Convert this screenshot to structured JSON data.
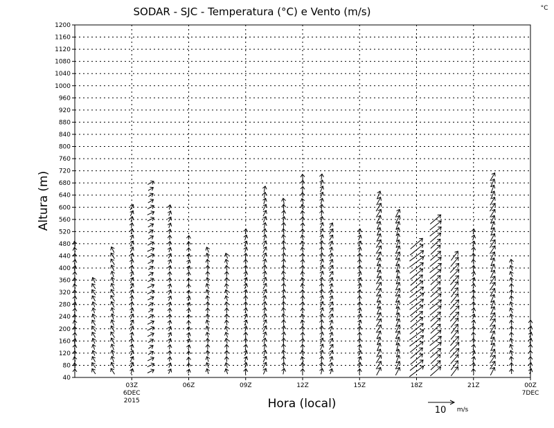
{
  "chart_data": {
    "type": "vector",
    "title": "SODAR - SJC - Temperatura (°C) e Vento (m/s)",
    "unit_corner": "°C",
    "xlabel": "Hora (local)",
    "ylabel": "Altura (m)",
    "ylim": [
      40,
      1200
    ],
    "yticks": [
      "40",
      "80",
      "120",
      "160",
      "200",
      "240",
      "280",
      "320",
      "360",
      "400",
      "440",
      "480",
      "520",
      "560",
      "600",
      "640",
      "680",
      "720",
      "760",
      "800",
      "840",
      "880",
      "920",
      "960",
      "1000",
      "1040",
      "1080",
      "1120",
      "1160",
      "1200"
    ],
    "xlim_hours": [
      0,
      24
    ],
    "xticks": [
      {
        "hour": 3,
        "label": "03Z",
        "sub1": "6DEC",
        "sub2": "2015"
      },
      {
        "hour": 6,
        "label": "06Z",
        "sub1": "",
        "sub2": ""
      },
      {
        "hour": 9,
        "label": "09Z",
        "sub1": "",
        "sub2": ""
      },
      {
        "hour": 12,
        "label": "12Z",
        "sub1": "",
        "sub2": ""
      },
      {
        "hour": 15,
        "label": "15Z",
        "sub1": "",
        "sub2": ""
      },
      {
        "hour": 18,
        "label": "18Z",
        "sub1": "",
        "sub2": ""
      },
      {
        "hour": 21,
        "label": "21Z",
        "sub1": "",
        "sub2": ""
      },
      {
        "hour": 24,
        "label": "00Z",
        "sub1": "7DEC",
        "sub2": ""
      }
    ],
    "grid": true,
    "reference_vector": {
      "speed_ms": 10,
      "value_label": "10",
      "unit_label": "m/s"
    },
    "vector_columns": [
      {
        "hour": 0.0,
        "top": 480,
        "u": 0.0,
        "v": 1.8
      },
      {
        "hour": 1.0,
        "top": 360,
        "u": -1.0,
        "v": 2.0
      },
      {
        "hour": 2.0,
        "top": 460,
        "u": -1.0,
        "v": 2.2
      },
      {
        "hour": 3.0,
        "top": 600,
        "u": 0.8,
        "v": 2.0
      },
      {
        "hour": 4.0,
        "top": 680,
        "u": 2.2,
        "v": 1.2
      },
      {
        "hour": 5.0,
        "top": 600,
        "u": 0.5,
        "v": 1.8
      },
      {
        "hour": 6.0,
        "top": 500,
        "u": 0.3,
        "v": 1.6
      },
      {
        "hour": 7.0,
        "top": 470,
        "u": -0.4,
        "v": 2.0
      },
      {
        "hour": 8.0,
        "top": 440,
        "u": -0.3,
        "v": 2.0
      },
      {
        "hour": 9.0,
        "top": 520,
        "u": 0.4,
        "v": 2.0
      },
      {
        "hour": 10.0,
        "top": 660,
        "u": 0.8,
        "v": 2.2
      },
      {
        "hour": 11.0,
        "top": 620,
        "u": 0.0,
        "v": 2.2
      },
      {
        "hour": 12.0,
        "top": 700,
        "u": -0.2,
        "v": 2.0
      },
      {
        "hour": 13.0,
        "top": 700,
        "u": 0.6,
        "v": 2.2
      },
      {
        "hour": 13.5,
        "top": 540,
        "u": 1.0,
        "v": 2.0
      },
      {
        "hour": 15.0,
        "top": 520,
        "u": 0.5,
        "v": 2.0
      },
      {
        "hour": 16.0,
        "top": 640,
        "u": 1.5,
        "v": 3.0
      },
      {
        "hour": 17.0,
        "top": 580,
        "u": 1.2,
        "v": 3.0
      },
      {
        "hour": 18.0,
        "top": 480,
        "u": 5.0,
        "v": 4.0
      },
      {
        "hour": 19.0,
        "top": 560,
        "u": 4.0,
        "v": 3.5
      },
      {
        "hour": 20.0,
        "top": 440,
        "u": 3.0,
        "v": 3.5
      },
      {
        "hour": 21.0,
        "top": 520,
        "u": 0.2,
        "v": 2.0
      },
      {
        "hour": 22.0,
        "top": 700,
        "u": 1.6,
        "v": 3.0
      },
      {
        "hour": 23.0,
        "top": 430,
        "u": -0.4,
        "v": 2.0
      },
      {
        "hour": 24.0,
        "top": 220,
        "u": 0.3,
        "v": 2.0
      }
    ]
  }
}
